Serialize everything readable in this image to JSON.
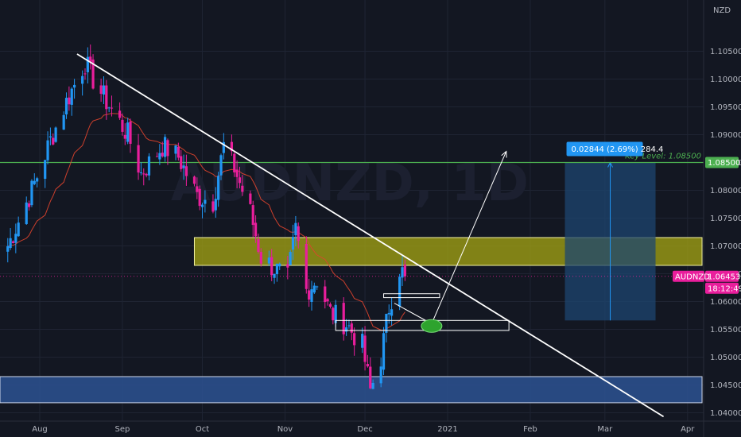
{
  "currency_label": "NZD",
  "colors": {
    "background": "#131722",
    "bull": "#2196f3",
    "bear": "#e91e9c",
    "ema": "#e0442e",
    "trendline": "#ffffff",
    "key_level": "#4caf50",
    "supply_zone": "#9e9d14",
    "demand_zone": "#2b4f8c",
    "measure_box": "#1e4670",
    "price_tag": "#e91e9c",
    "measure_tag": "#2196f3"
  },
  "watermark": "AUDNZD, 1D",
  "chart_data": {
    "type": "candlestick",
    "symbol": "AUDNZD",
    "interval": "1D",
    "ylim": [
      1.0375,
      1.1135
    ],
    "y_ticks": [
      "1.04000",
      "1.04500",
      "1.05000",
      "1.05500",
      "1.06000",
      "1.06500",
      "1.07000",
      "1.07500",
      "1.08000",
      "1.08500",
      "1.09000",
      "1.09500",
      "1.10000",
      "1.10500"
    ],
    "x_ticks": [
      "Aug",
      "Sep",
      "Oct",
      "Nov",
      "Dec",
      "2021",
      "Feb",
      "Mar",
      "Apr"
    ],
    "x_tick_dates": [
      "2020-08-01",
      "2020-09-01",
      "2020-10-01",
      "2020-11-01",
      "2020-12-01",
      "2021-01-01",
      "2021-02-01",
      "2021-03-01",
      "2021-04-01"
    ],
    "closes": [
      {
        "date": "2020-07-20",
        "close": 1.07
      },
      {
        "date": "2020-07-29",
        "close": 1.08
      },
      {
        "date": "2020-08-05",
        "close": 1.089
      },
      {
        "date": "2020-08-12",
        "close": 1.097
      },
      {
        "date": "2020-08-18",
        "close": 1.103
      },
      {
        "date": "2020-08-21",
        "close": 1.1
      },
      {
        "date": "2020-08-26",
        "close": 1.096
      },
      {
        "date": "2020-09-03",
        "close": 1.09
      },
      {
        "date": "2020-09-08",
        "close": 1.083
      },
      {
        "date": "2020-09-16",
        "close": 1.088
      },
      {
        "date": "2020-09-22",
        "close": 1.086
      },
      {
        "date": "2020-09-29",
        "close": 1.079
      },
      {
        "date": "2020-10-05",
        "close": 1.078
      },
      {
        "date": "2020-10-09",
        "close": 1.088
      },
      {
        "date": "2020-10-13",
        "close": 1.084
      },
      {
        "date": "2020-10-19",
        "close": 1.076
      },
      {
        "date": "2020-10-23",
        "close": 1.068
      },
      {
        "date": "2020-10-28",
        "close": 1.066
      },
      {
        "date": "2020-11-02",
        "close": 1.064
      },
      {
        "date": "2020-11-05",
        "close": 1.073
      },
      {
        "date": "2020-11-09",
        "close": 1.062
      },
      {
        "date": "2020-11-13",
        "close": 1.064
      },
      {
        "date": "2020-11-18",
        "close": 1.058
      },
      {
        "date": "2020-11-24",
        "close": 1.056
      },
      {
        "date": "2020-11-30",
        "close": 1.052
      },
      {
        "date": "2020-12-03",
        "close": 1.044
      },
      {
        "date": "2020-12-07",
        "close": 1.05
      },
      {
        "date": "2020-12-10",
        "close": 1.059
      },
      {
        "date": "2020-12-14",
        "close": 1.066
      },
      {
        "date": "2020-12-16",
        "close": 1.0645
      }
    ],
    "current_price": "1.06453",
    "countdown": "18:12:49",
    "price_tag_label": "AUDNZD",
    "key_level": {
      "label": "Key Level: 1.08500",
      "value": 1.085,
      "tag": "1.08500"
    },
    "supply_zone": {
      "from": "2020-09-28",
      "to": "2021-04-30",
      "low": 1.0665,
      "high": 1.0715
    },
    "demand_zone": {
      "from": "2020-07-01",
      "to": "2021-04-30",
      "low": 1.0418,
      "high": 1.0465
    },
    "trendline": {
      "from": {
        "date": "2020-08-15",
        "value": 1.1045
      },
      "to": {
        "date": "2021-03-23",
        "value": 1.0393
      }
    },
    "measure": {
      "label": "0.02844 (2.69%) 284.4",
      "from": "2021-02-14",
      "to": "2021-03-20",
      "low": 1.0566,
      "high": 1.085
    },
    "projection_arrow": {
      "start": {
        "date": "2020-12-26",
        "value": 1.056
      },
      "end": {
        "date": "2021-01-23",
        "value": 1.087
      }
    }
  }
}
